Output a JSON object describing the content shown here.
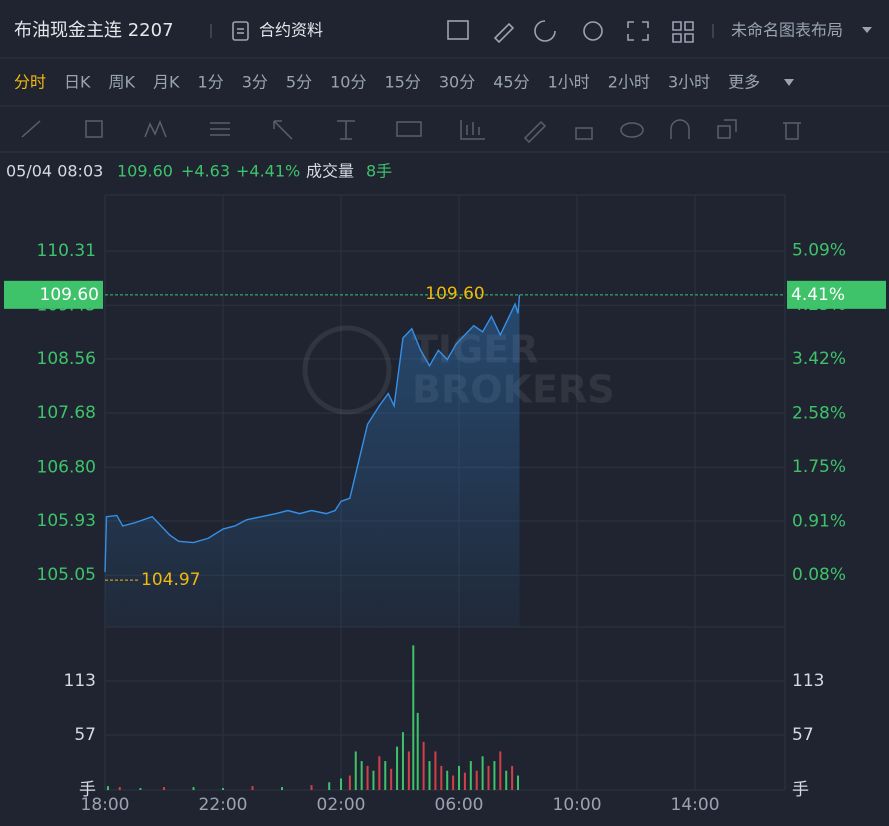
{
  "header": {
    "title": "布油现金主连 2207",
    "contract": "合约资料",
    "layout": "未命名图表布局"
  },
  "periods": [
    "分时",
    "日K",
    "周K",
    "月K",
    "1分",
    "3分",
    "5分",
    "10分",
    "15分",
    "30分",
    "45分",
    "1小时",
    "2小时",
    "3小时",
    "更多"
  ],
  "info": {
    "time": "05/04 08:03",
    "price": "109.60",
    "change": "+4.63",
    "change_pct": "+4.41%",
    "volume_label": "成交量",
    "volume": "8手"
  },
  "chart_data": [
    {
      "type": "line",
      "color": "#3590e8",
      "watermark": [
        "TIGER",
        "BROKERS"
      ],
      "x": [
        0.0,
        0.05,
        0.4,
        0.6,
        1.0,
        1.3,
        1.6,
        2.0,
        2.2,
        2.5,
        3.0,
        3.5,
        4.0,
        4.4,
        4.8,
        5.3,
        5.8,
        6.2,
        6.6,
        7.0,
        7.5,
        7.8,
        8.0,
        8.3,
        8.6,
        8.9,
        9.3,
        9.6,
        9.8,
        10.1,
        10.4,
        10.7,
        11.0,
        11.3,
        11.6,
        11.9,
        12.2,
        12.5,
        12.8,
        13.1,
        13.4,
        13.6,
        13.9,
        14.0,
        14.05
      ],
      "values": [
        105.1,
        106.0,
        106.02,
        105.85,
        105.9,
        105.95,
        106.0,
        105.8,
        105.7,
        105.6,
        105.58,
        105.65,
        105.8,
        105.85,
        105.95,
        106.0,
        106.05,
        106.1,
        106.05,
        106.1,
        106.05,
        106.1,
        106.25,
        106.3,
        106.9,
        107.5,
        107.8,
        108.0,
        107.8,
        108.9,
        109.05,
        108.7,
        108.45,
        108.7,
        108.55,
        108.8,
        108.95,
        109.1,
        109.0,
        109.25,
        108.95,
        109.15,
        109.45,
        109.3,
        109.6
      ],
      "xlim": [
        0,
        23.05
      ],
      "xticks": [
        {
          "value": 0,
          "label": "18:00"
        },
        {
          "value": 4,
          "label": "22:00"
        },
        {
          "value": 8,
          "label": "02:00"
        },
        {
          "value": 12,
          "label": "06:00"
        },
        {
          "value": 16,
          "label": "10:00"
        },
        {
          "value": 20,
          "label": "14:00"
        }
      ],
      "ylim": [
        104.21,
        111.22
      ],
      "yticks": [
        110.31,
        109.43,
        108.56,
        107.68,
        {
          "value": 106.8,
          "label": "106.80"
        },
        105.93,
        105.05
      ],
      "y2lim": [
        -0.72,
        5.95
      ],
      "y2ticks": [
        {
          "value": 5.09,
          "label": "5.09%"
        },
        {
          "value": 4.25,
          "label": "4.25%"
        },
        {
          "value": 3.42,
          "label": "3.42%"
        },
        {
          "value": 2.58,
          "label": "2.58%"
        },
        {
          "value": 1.75,
          "label": "1.75%"
        },
        {
          "value": 0.91,
          "label": "0.91%"
        },
        {
          "value": 0.08,
          "label": "0.08%"
        }
      ],
      "last_price": {
        "value": 109.6,
        "label": "109.60"
      },
      "last_change_pct": {
        "value": 4.41,
        "label": "4.41%"
      },
      "prev_close": 104.97
    },
    {
      "type": "bar",
      "x": [
        0.1,
        0.5,
        1.2,
        2.0,
        3.0,
        4.0,
        5.0,
        6.0,
        7.0,
        7.6,
        8.0,
        8.3,
        8.5,
        8.7,
        8.9,
        9.1,
        9.3,
        9.5,
        9.7,
        9.9,
        10.1,
        10.3,
        10.45,
        10.6,
        10.8,
        11.0,
        11.2,
        11.4,
        11.6,
        11.8,
        12.0,
        12.2,
        12.4,
        12.6,
        12.8,
        13.0,
        13.2,
        13.4,
        13.6,
        13.8,
        14.0
      ],
      "values": [
        4,
        3,
        2,
        3,
        3,
        2,
        4,
        3,
        5,
        8,
        12,
        15,
        40,
        30,
        25,
        20,
        35,
        30,
        22,
        45,
        60,
        40,
        150,
        80,
        50,
        30,
        40,
        25,
        20,
        15,
        25,
        18,
        30,
        20,
        35,
        25,
        30,
        40,
        20,
        25,
        15
      ],
      "colors": [
        "#3ec26a",
        "#d2404a",
        "#3ec26a",
        "#d2404a",
        "#3ec26a",
        "#3ec26a",
        "#d2404a",
        "#3ec26a",
        "#d2404a",
        "#3ec26a",
        "#3ec26a",
        "#d2404a",
        "#3ec26a",
        "#3ec26a",
        "#d2404a",
        "#3ec26a",
        "#d2404a",
        "#3ec26a",
        "#d2404a",
        "#3ec26a",
        "#3ec26a",
        "#d2404a",
        "#3ec26a",
        "#3ec26a",
        "#d2404a",
        "#3ec26a",
        "#d2404a",
        "#d2404a",
        "#3ec26a",
        "#d2404a",
        "#3ec26a",
        "#d2404a",
        "#3ec26a",
        "#d2404a",
        "#3ec26a",
        "#d2404a",
        "#3ec26a",
        "#d2404a",
        "#3ec26a",
        "#d2404a",
        "#3ec26a"
      ],
      "xlim": [
        0,
        23.05
      ],
      "ylim": [
        0,
        158.7
      ],
      "yticks": [
        113,
        57,
        {
          "value": 0,
          "label": "手"
        }
      ]
    }
  ]
}
